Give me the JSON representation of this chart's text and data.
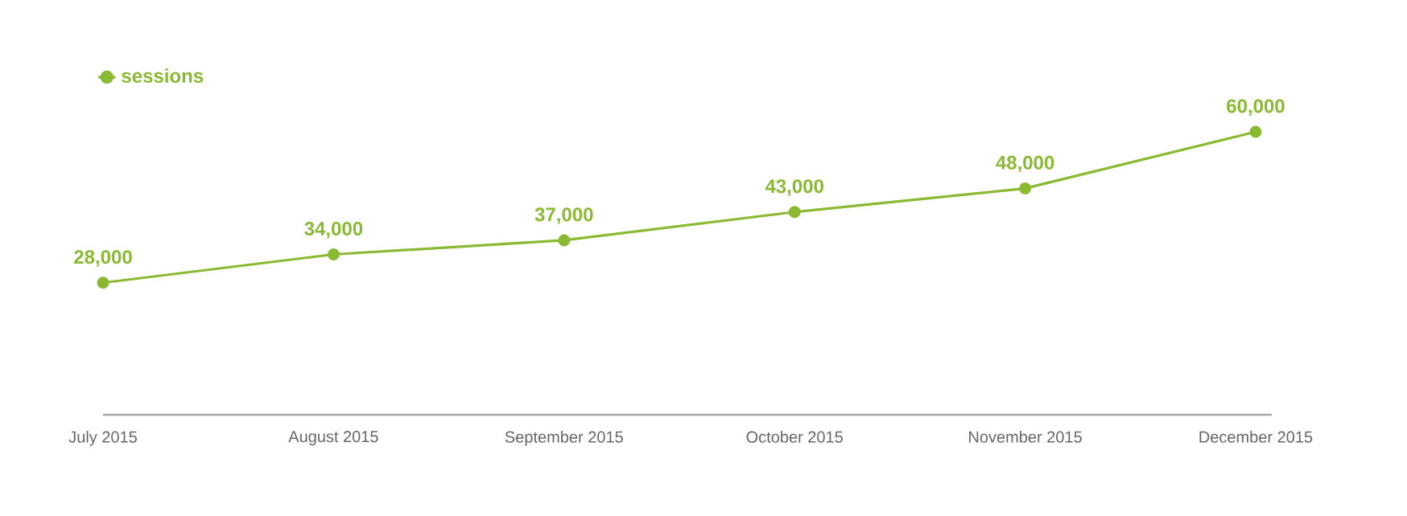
{
  "chart_data": {
    "type": "line",
    "categories": [
      "July 2015",
      "August 2015",
      "September 2015",
      "October 2015",
      "November 2015",
      "December 2015"
    ],
    "series": [
      {
        "name": "sessions",
        "color": "#8ab932",
        "values": [
          28000,
          34000,
          37000,
          43000,
          48000,
          60000
        ],
        "value_labels": [
          "28,000",
          "34,000",
          "37,000",
          "43,000",
          "48,000",
          "60,000"
        ]
      }
    ],
    "legend": "top left",
    "marker": "circle",
    "line_style": "solid",
    "grid": false,
    "tick_labels": "x"
  }
}
